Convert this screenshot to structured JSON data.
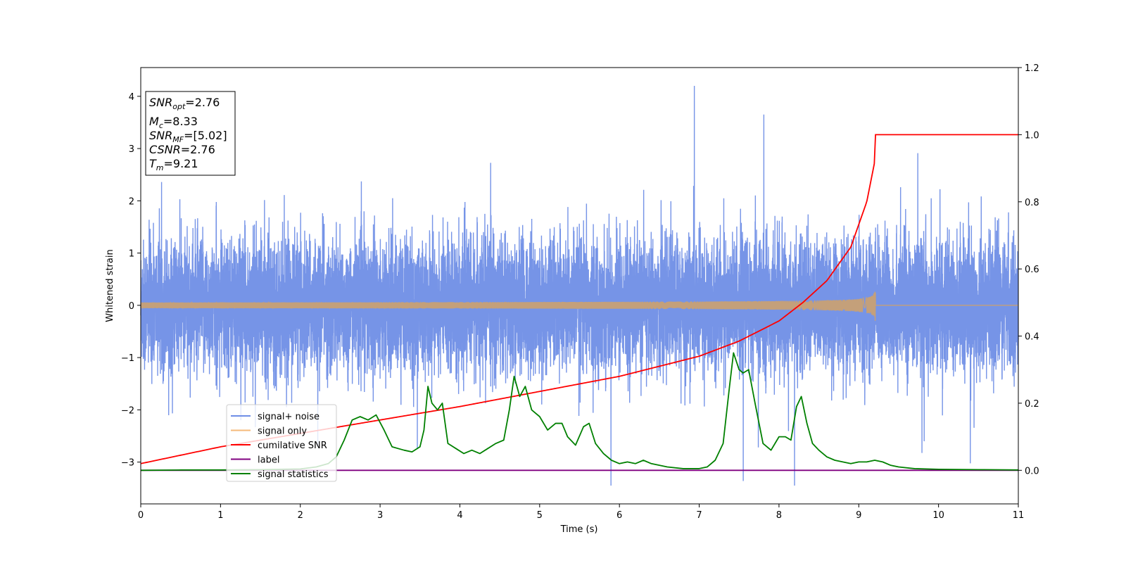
{
  "chart_data": {
    "type": "line",
    "xlabel": "Time (s)",
    "ylabel": "Whitened strain",
    "xlim": [
      0,
      11
    ],
    "ylim": [
      -3.8,
      4.55
    ],
    "y2lim": [
      -0.1,
      1.2
    ],
    "grid": false,
    "xticks": [
      "0",
      "1",
      "2",
      "3",
      "4",
      "5",
      "6",
      "7",
      "8",
      "9",
      "10",
      "11"
    ],
    "yticks": [
      "−3",
      "−2",
      "−1",
      "0",
      "1",
      "2",
      "3",
      "4"
    ],
    "y2ticks": [
      "0.0",
      "0.2",
      "0.4",
      "0.6",
      "0.8",
      "1.0",
      "1.2"
    ],
    "annotation": {
      "snr_opt": {
        "main": "SNR",
        "sub": "opt",
        "value": "=2.76"
      },
      "mc": {
        "main": "M",
        "sub": "c",
        "value": "=8.33"
      },
      "snr_mf": {
        "main": "SNR",
        "sub": "MF",
        "value": "=[5.02]"
      },
      "csnr": {
        "main": "CSNR",
        "value": "=2.76"
      },
      "tm": {
        "main": "T",
        "sub": "m",
        "value": "=9.21"
      }
    },
    "legend": {
      "placement": "lower-left",
      "entries": [
        {
          "label": "signal+ noise",
          "color": "#6f8ee6"
        },
        {
          "label": "signal only",
          "color": "#f5b97a"
        },
        {
          "label": "cumilative SNR",
          "color": "#ff0000"
        },
        {
          "label": "label",
          "color": "#800080"
        },
        {
          "label": "signal statistics",
          "color": "#008000"
        }
      ]
    },
    "series": [
      {
        "name": "signal+ noise",
        "axis": "left",
        "color": "#6f8ee6",
        "description_values": {
          "amplitude_typical": 1.6,
          "amplitude_max": 4.2,
          "sample_rate_hint": 1000
        }
      },
      {
        "name": "signal only",
        "axis": "left",
        "color": "#c4a07a",
        "chirp": {
          "t_merger": 9.21,
          "amplitude_at_merger": 0.35
        }
      },
      {
        "name": "cumilative SNR",
        "axis": "right",
        "color": "#ff0000",
        "x": [
          0,
          1,
          2,
          3,
          4,
          5,
          6,
          7,
          7.5,
          8,
          8.3,
          8.6,
          8.9,
          9.1,
          9.2,
          9.21,
          11
        ],
        "y": [
          0.02,
          0.07,
          0.11,
          0.15,
          0.19,
          0.235,
          0.28,
          0.34,
          0.385,
          0.445,
          0.5,
          0.565,
          0.665,
          0.8,
          0.92,
          1.0,
          1.0
        ]
      },
      {
        "name": "label",
        "axis": "right",
        "color": "#800080",
        "x": [
          0,
          11
        ],
        "y": [
          0.0,
          0.0
        ]
      },
      {
        "name": "signal statistics",
        "axis": "right",
        "color": "#008000",
        "x": [
          0,
          0.5,
          1.0,
          1.5,
          2.0,
          2.2,
          2.35,
          2.45,
          2.55,
          2.65,
          2.75,
          2.85,
          2.95,
          3.05,
          3.15,
          3.3,
          3.4,
          3.5,
          3.55,
          3.6,
          3.65,
          3.72,
          3.78,
          3.85,
          3.95,
          4.05,
          4.15,
          4.25,
          4.35,
          4.45,
          4.55,
          4.62,
          4.68,
          4.75,
          4.82,
          4.9,
          5.0,
          5.1,
          5.2,
          5.28,
          5.35,
          5.45,
          5.55,
          5.62,
          5.7,
          5.8,
          5.9,
          6.0,
          6.1,
          6.2,
          6.3,
          6.4,
          6.6,
          6.8,
          7.0,
          7.1,
          7.2,
          7.3,
          7.38,
          7.43,
          7.5,
          7.55,
          7.62,
          7.7,
          7.8,
          7.9,
          8.0,
          8.08,
          8.15,
          8.22,
          8.28,
          8.35,
          8.42,
          8.5,
          8.6,
          8.7,
          8.8,
          8.9,
          9.0,
          9.1,
          9.2,
          9.3,
          9.4,
          9.5,
          9.7,
          10.0,
          10.5,
          11.0
        ],
        "y": [
          0.0,
          0.001,
          0.001,
          0.002,
          0.004,
          0.01,
          0.02,
          0.04,
          0.09,
          0.15,
          0.16,
          0.15,
          0.165,
          0.12,
          0.07,
          0.06,
          0.055,
          0.07,
          0.12,
          0.25,
          0.2,
          0.18,
          0.2,
          0.08,
          0.065,
          0.05,
          0.06,
          0.05,
          0.065,
          0.08,
          0.09,
          0.18,
          0.28,
          0.22,
          0.25,
          0.18,
          0.16,
          0.12,
          0.14,
          0.14,
          0.1,
          0.075,
          0.13,
          0.14,
          0.08,
          0.05,
          0.03,
          0.02,
          0.025,
          0.02,
          0.03,
          0.02,
          0.01,
          0.005,
          0.005,
          0.01,
          0.03,
          0.08,
          0.25,
          0.35,
          0.3,
          0.29,
          0.3,
          0.2,
          0.08,
          0.06,
          0.1,
          0.1,
          0.09,
          0.19,
          0.22,
          0.14,
          0.08,
          0.06,
          0.04,
          0.03,
          0.025,
          0.02,
          0.025,
          0.025,
          0.03,
          0.025,
          0.015,
          0.01,
          0.005,
          0.003,
          0.002,
          0.001
        ]
      }
    ]
  }
}
